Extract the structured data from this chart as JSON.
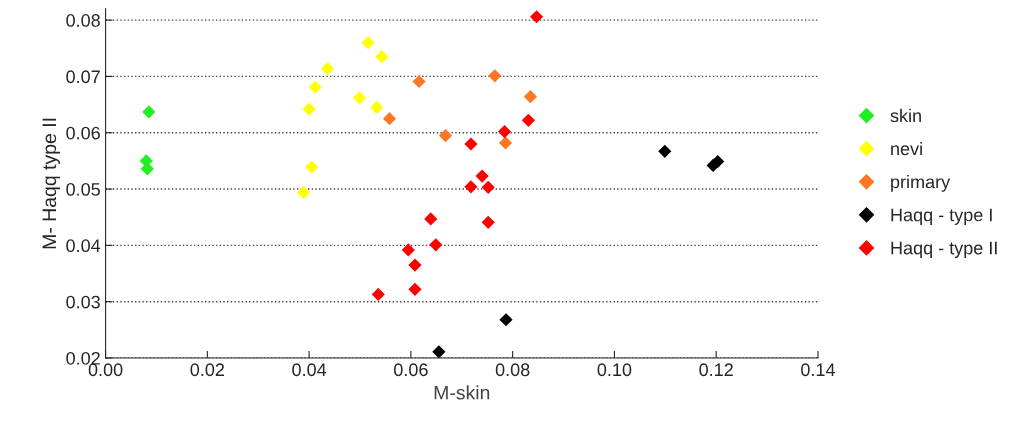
{
  "chart_data": {
    "type": "scatter",
    "xlabel": "M-skin",
    "ylabel": "M- Haqq type II",
    "marker": "diamond",
    "grid": "y",
    "legend": "right",
    "xlim": [
      0,
      0.14
    ],
    "ylim": [
      0.02,
      0.082
    ],
    "xticks": [
      {
        "value": 0,
        "label": "0.00"
      },
      {
        "value": 0.02,
        "label": "0.02"
      },
      {
        "value": 0.04,
        "label": "0.04"
      },
      {
        "value": 0.06,
        "label": "0.06"
      },
      {
        "value": 0.08,
        "label": "0.08"
      },
      {
        "value": 0.1,
        "label": "0.10"
      },
      {
        "value": 0.12,
        "label": "0.12"
      },
      {
        "value": 0.14,
        "label": "0.14"
      }
    ],
    "yticks": [
      0.02,
      0.03,
      0.04,
      0.05,
      0.06,
      0.07,
      0.08
    ],
    "series": [
      {
        "name": "skin",
        "color": "#22ee22",
        "x": [
          0.0085,
          0.008,
          0.0082
        ],
        "values": [
          0.0637,
          0.055,
          0.0536
        ]
      },
      {
        "name": "nevi",
        "color": "#ffff00",
        "x": [
          0.0389,
          0.04,
          0.0412,
          0.0436,
          0.0405,
          0.0499,
          0.0516,
          0.0543,
          0.0533
        ],
        "values": [
          0.0494,
          0.0642,
          0.0681,
          0.0714,
          0.0539,
          0.0662,
          0.076,
          0.0735,
          0.0645
        ]
      },
      {
        "name": "primary",
        "color": "#ff7722",
        "x": [
          0.0558,
          0.0616,
          0.0668,
          0.0765,
          0.0835,
          0.0786
        ],
        "values": [
          0.0625,
          0.0691,
          0.0595,
          0.0701,
          0.0664,
          0.0582
        ]
      },
      {
        "name": "Haqq - type I",
        "color": "#000000",
        "x": [
          0.0655,
          0.0787,
          0.1099,
          0.1194,
          0.1203
        ],
        "values": [
          0.0211,
          0.0268,
          0.0567,
          0.0542,
          0.0549
        ]
      },
      {
        "name": "Haqq - type II",
        "color": "#ff0000",
        "x": [
          0.0847,
          0.0831,
          0.0784,
          0.0718,
          0.074,
          0.0718,
          0.0752,
          0.0752,
          0.0639,
          0.0649,
          0.0595,
          0.0608,
          0.0608,
          0.0536
        ],
        "values": [
          0.0806,
          0.0622,
          0.0602,
          0.058,
          0.0523,
          0.0504,
          0.0503,
          0.0441,
          0.0447,
          0.0401,
          0.0392,
          0.0365,
          0.0322,
          0.0313
        ]
      }
    ]
  }
}
